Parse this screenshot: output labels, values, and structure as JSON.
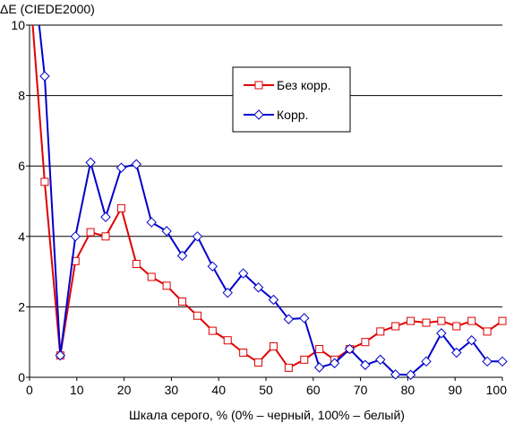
{
  "chart_data": {
    "type": "line",
    "title": "",
    "ylabel": "ΔE (CIEDE2000)",
    "xlabel": "Шкала серого, % (0% – черный, 100% – белый)",
    "xlim": [
      0,
      100
    ],
    "ylim": [
      0,
      10
    ],
    "x_ticks": [
      0,
      10,
      20,
      30,
      40,
      50,
      60,
      70,
      80,
      90,
      100
    ],
    "y_ticks": [
      0,
      2,
      4,
      6,
      8,
      10
    ],
    "grid": "horizontal",
    "legend_position": "top-center-right",
    "x": [
      3.2,
      6.5,
      9.7,
      12.9,
      16.1,
      19.4,
      22.6,
      25.8,
      29,
      32.3,
      35.5,
      38.7,
      41.9,
      45.2,
      48.4,
      51.6,
      54.8,
      58.1,
      61.3,
      64.5,
      67.7,
      71,
      74.2,
      77.4,
      80.6,
      83.9,
      87.1,
      90.3,
      93.5,
      96.8,
      100
    ],
    "series": [
      {
        "name": "Без корр.",
        "color": "#e00000",
        "marker": "square",
        "lead_in": [
          [
            0.5,
            10.3
          ]
        ],
        "values": [
          5.55,
          0.62,
          3.3,
          4.12,
          4.0,
          4.8,
          3.22,
          2.85,
          2.6,
          2.15,
          1.75,
          1.32,
          1.05,
          0.7,
          0.42,
          0.88,
          0.27,
          0.5,
          0.8,
          0.5,
          0.8,
          1.0,
          1.3,
          1.45,
          1.6,
          1.55,
          1.6,
          1.45,
          1.6,
          1.3,
          1.6
        ]
      },
      {
        "name": "Корр.",
        "color": "#0000cc",
        "marker": "diamond",
        "lead_in": [
          [
            1.8,
            10.3
          ]
        ],
        "values": [
          8.55,
          0.62,
          4.0,
          6.1,
          4.55,
          5.95,
          6.05,
          4.4,
          4.15,
          3.45,
          4.0,
          3.15,
          2.4,
          2.95,
          2.55,
          2.2,
          1.65,
          1.68,
          0.28,
          0.4,
          0.8,
          0.35,
          0.5,
          0.08,
          0.07,
          0.45,
          1.25,
          0.7,
          1.05,
          0.45,
          0.45
        ]
      }
    ]
  }
}
